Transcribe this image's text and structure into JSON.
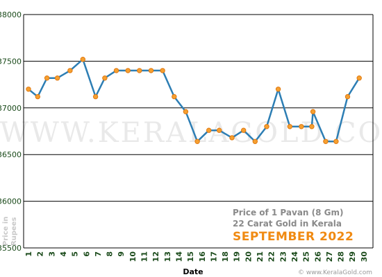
{
  "chart_data": {
    "type": "line",
    "xlabel": "Date",
    "ylabel": "Price in Rupees",
    "ylim": [
      35500,
      38000
    ],
    "yticks": [
      35500,
      36000,
      36500,
      37000,
      37500,
      38000
    ],
    "grid": true,
    "x": [
      1,
      2,
      3,
      4,
      5,
      6,
      7,
      8,
      9,
      10,
      11,
      12,
      13,
      14,
      15,
      16,
      17,
      18,
      19,
      20,
      21,
      22,
      23,
      24,
      25,
      26,
      27,
      28,
      29,
      30
    ],
    "series": [
      {
        "points": [
          [
            1,
            37200
          ],
          [
            1.8,
            37120
          ],
          [
            2.6,
            37320
          ],
          [
            3.5,
            37320
          ],
          [
            4.6,
            37400
          ],
          [
            5.7,
            37520
          ],
          [
            6.8,
            37120
          ],
          [
            7.6,
            37320
          ],
          [
            8.6,
            37400
          ],
          [
            9.6,
            37400
          ],
          [
            10.6,
            37400
          ],
          [
            11.6,
            37400
          ],
          [
            12.6,
            37400
          ],
          [
            13.6,
            37120
          ],
          [
            14.6,
            36960
          ],
          [
            15.6,
            36640
          ],
          [
            16.6,
            36760
          ],
          [
            17.5,
            36760
          ],
          [
            18.6,
            36680
          ],
          [
            19.6,
            36760
          ],
          [
            20.6,
            36640
          ],
          [
            21.6,
            36800
          ],
          [
            22.6,
            37200
          ],
          [
            23.6,
            36800
          ],
          [
            24.6,
            36800
          ],
          [
            25.5,
            36800
          ],
          [
            25.6,
            36960
          ],
          [
            26.7,
            36640
          ],
          [
            27.6,
            36640
          ],
          [
            28.6,
            37120
          ],
          [
            29.6,
            37320
          ]
        ]
      }
    ],
    "caption": {
      "line1": "Price of 1 Pavan (8 Gm)",
      "line2": "22 Carat Gold in Kerala",
      "line3": "SEPTEMBER 2022"
    },
    "watermark": "WWW.KERALAGOLD.COM",
    "footer": "© www.KeralaGold.com",
    "colors": {
      "line": "#2d7eb4",
      "marker": "#f5a031",
      "marker_edge": "#e07810",
      "grid": "#000000",
      "axis_text": "#1a4a1a",
      "caption_gray": "#8a8a8a",
      "caption_orange": "#f08a12"
    }
  }
}
